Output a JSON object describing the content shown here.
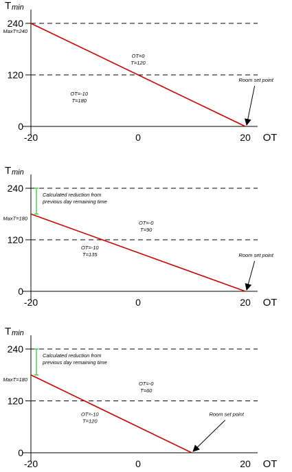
{
  "chart_data": [
    {
      "type": "line",
      "ylabel": "T",
      "ylabel_sub": "min",
      "xlabel": "OT",
      "x_ticks": [
        -20,
        0,
        20
      ],
      "y_ticks": [
        0,
        120,
        240
      ],
      "xlim": [
        -20,
        20
      ],
      "ylim": [
        0,
        240
      ],
      "reference_lines": [
        120,
        240
      ],
      "series": [
        {
          "color": "#cc0000",
          "points": [
            [
              -20,
              240
            ],
            [
              20,
              0
            ]
          ]
        }
      ],
      "max_label": "MaxT=240",
      "annotations": [
        {
          "lines": [
            "OT=0",
            "T=120"
          ],
          "x": 0,
          "y": 160
        },
        {
          "lines": [
            "OT=-10",
            "T=180"
          ],
          "x": -11,
          "y": 72
        },
        {
          "lines": [
            "Room set point"
          ],
          "x": 22,
          "y": 104,
          "arrow_to": [
            20,
            0
          ]
        }
      ]
    },
    {
      "type": "line",
      "ylabel": "T",
      "ylabel_sub": "min",
      "xlabel": "OT",
      "x_ticks": [
        -20,
        0,
        20
      ],
      "y_ticks": [
        0,
        120,
        240
      ],
      "xlim": [
        -20,
        20
      ],
      "ylim": [
        0,
        240
      ],
      "reference_lines": [
        120,
        240
      ],
      "series": [
        {
          "color": "#cc0000",
          "points": [
            [
              -20,
              180
            ],
            [
              20,
              0
            ]
          ]
        }
      ],
      "max_label": "MaxT=180",
      "reduction": {
        "from": 240,
        "to": 180,
        "color": "#33cc33",
        "lines": [
          "Calculated reduction from",
          "previous day remaining time"
        ]
      },
      "annotations": [
        {
          "lines": [
            "OT=-0",
            "T=90"
          ],
          "x": 1.5,
          "y": 155
        },
        {
          "lines": [
            "OT=-10",
            "T=135"
          ],
          "x": -9,
          "y": 98
        },
        {
          "lines": [
            "Room set point"
          ],
          "x": 22,
          "y": 80,
          "arrow_to": [
            20,
            0
          ]
        }
      ]
    },
    {
      "type": "line",
      "ylabel": "T",
      "ylabel_sub": "min",
      "xlabel": "OT",
      "x_ticks": [
        -20,
        0,
        20
      ],
      "y_ticks": [
        0,
        120,
        240
      ],
      "xlim": [
        -20,
        20
      ],
      "ylim": [
        0,
        240
      ],
      "reference_lines": [
        120,
        240
      ],
      "series": [
        {
          "color": "#cc0000",
          "points": [
            [
              -20,
              180
            ],
            [
              10,
              0
            ]
          ]
        }
      ],
      "max_label": "MaxT=180",
      "reduction": {
        "from": 240,
        "to": 180,
        "color": "#33cc33",
        "lines": [
          "Calculated reduction from",
          "previous day remaining time"
        ]
      },
      "annotations": [
        {
          "lines": [
            "OT=-0",
            "T=60"
          ],
          "x": 1.5,
          "y": 156
        },
        {
          "lines": [
            "OT=-10",
            "T=120"
          ],
          "x": -9,
          "y": 85
        },
        {
          "lines": [
            "Room set point"
          ],
          "x": 16.5,
          "y": 85,
          "arrow_to": [
            10,
            0
          ]
        }
      ]
    }
  ]
}
